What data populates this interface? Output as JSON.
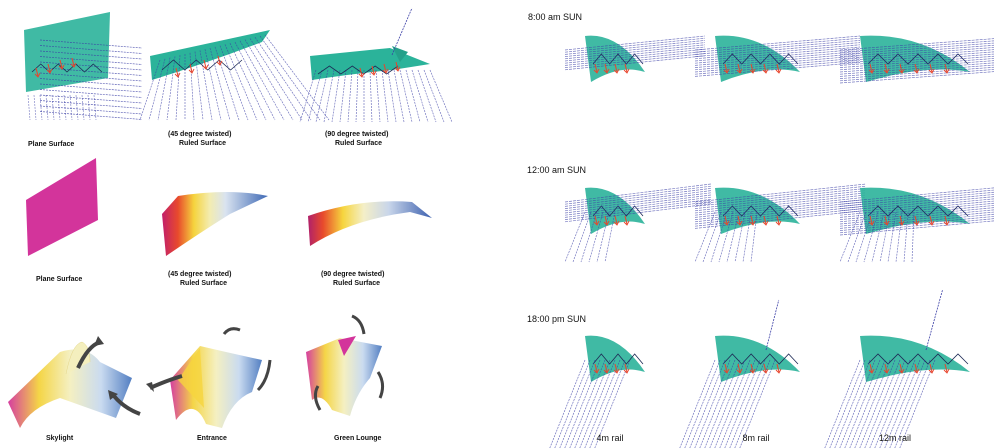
{
  "colors": {
    "teal": "#2bb39a",
    "ray": "#3b3fa6",
    "arrow": "#e8452c",
    "magenta": "#d3349b"
  },
  "left_labels": {
    "row1": {
      "plane": "Plane Surface",
      "twist45_a": "(45 degree twisted)",
      "twist45_b": "Ruled Surface",
      "twist90_a": "(90 degree twisted)",
      "twist90_b": "Ruled Surface"
    },
    "row2": {
      "plane": "Plane Surface",
      "twist45_a": "(45 degree twisted)",
      "twist45_b": "Ruled Surface",
      "twist90_a": "(90 degree twisted)",
      "twist90_b": "Ruled Surface"
    },
    "row3": {
      "skylight": "Skylight",
      "entrance": "Entrance",
      "lounge": "Green Lounge"
    }
  },
  "right_labels": {
    "times": [
      "8:00 am SUN",
      "12:00 am SUN",
      "18:00 pm SUN"
    ],
    "rails": [
      "4m rail",
      "8m rail",
      "12m rail"
    ]
  }
}
